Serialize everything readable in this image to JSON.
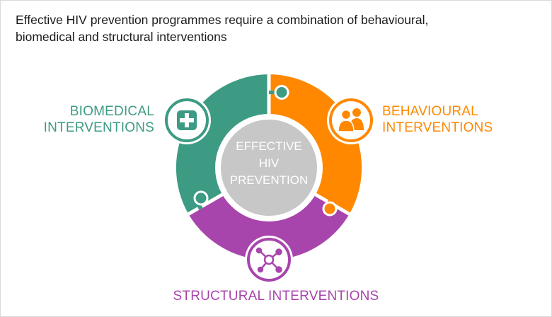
{
  "headline": {
    "line1": "Effective HIV prevention programmes require a combination of behavioural,",
    "line2": "biomedical and structural interventions"
  },
  "center": {
    "line1": "EFFECTIVE",
    "line2": "HIV",
    "line3": "PREVENTION"
  },
  "segments": {
    "biomedical": {
      "line1": "BIOMEDICAL",
      "line2": "INTERVENTIONS",
      "color": "#3d9b84",
      "icon": "plus-icon"
    },
    "behavioural": {
      "line1": "BEHAVIOURAL",
      "line2": "INTERVENTIONS",
      "color": "#ff8800",
      "icon": "people-icon"
    },
    "structural": {
      "line1": "STRUCTURAL INTERVENTIONS",
      "color": "#a845ad",
      "icon": "network-icon"
    }
  },
  "center_color": "#c7c7c7"
}
